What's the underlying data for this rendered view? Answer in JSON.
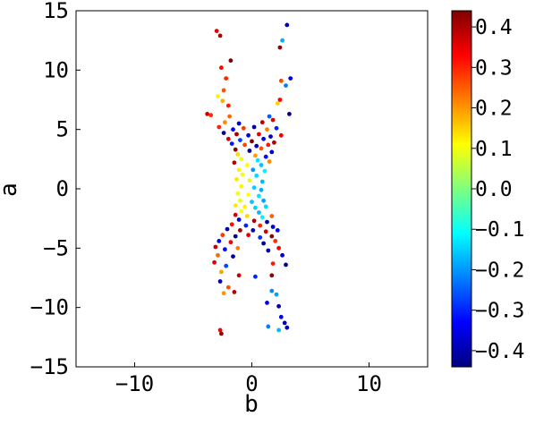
{
  "chart_data": {
    "type": "scatter",
    "title": "",
    "xlabel": "b",
    "ylabel": "a",
    "xlim": [
      -15,
      15
    ],
    "ylim": [
      -15,
      15
    ],
    "x_ticks": [
      {
        "value": -10,
        "label": "−10"
      },
      {
        "value": 0,
        "label": "0"
      },
      {
        "value": 10,
        "label": "10"
      }
    ],
    "y_ticks": [
      {
        "value": -15,
        "label": "−15"
      },
      {
        "value": -10,
        "label": "−10"
      },
      {
        "value": -5,
        "label": "−5"
      },
      {
        "value": 0,
        "label": "0"
      },
      {
        "value": 5,
        "label": "5"
      },
      {
        "value": 10,
        "label": "10"
      },
      {
        "value": 15,
        "label": "15"
      }
    ],
    "grid": false,
    "colorbar": {
      "colormap": "jet",
      "range": [
        -0.44,
        0.44
      ],
      "ticks": [
        {
          "value": 0.4,
          "label": "0.4"
        },
        {
          "value": 0.3,
          "label": "0.3"
        },
        {
          "value": 0.2,
          "label": "0.2"
        },
        {
          "value": 0.1,
          "label": "0.1"
        },
        {
          "value": 0.0,
          "label": "0.0"
        },
        {
          "value": -0.1,
          "label": "−0.1"
        },
        {
          "value": -0.2,
          "label": "−0.2"
        },
        {
          "value": -0.3,
          "label": "−0.3"
        },
        {
          "value": -0.4,
          "label": "−0.4"
        }
      ]
    },
    "points": [
      {
        "x": -3.0,
        "y": 13.3,
        "c": 0.35
      },
      {
        "x": -2.7,
        "y": 12.9,
        "c": 0.4
      },
      {
        "x": -1.8,
        "y": 10.8,
        "c": 0.44
      },
      {
        "x": -2.6,
        "y": 10.2,
        "c": 0.33
      },
      {
        "x": -2.2,
        "y": 9.3,
        "c": 0.3
      },
      {
        "x": -2.4,
        "y": 8.3,
        "c": 0.26
      },
      {
        "x": -2.5,
        "y": 7.4,
        "c": 0.18
      },
      {
        "x": -2.9,
        "y": 7.8,
        "c": 0.12
      },
      {
        "x": -2.0,
        "y": 7.0,
        "c": 0.31
      },
      {
        "x": -3.8,
        "y": 6.3,
        "c": 0.38
      },
      {
        "x": -3.5,
        "y": 6.2,
        "c": 0.29
      },
      {
        "x": -1.9,
        "y": 6.1,
        "c": 0.24
      },
      {
        "x": 3.0,
        "y": 13.8,
        "c": -0.4
      },
      {
        "x": 2.6,
        "y": 12.5,
        "c": -0.18
      },
      {
        "x": 2.4,
        "y": 11.9,
        "c": 0.42
      },
      {
        "x": 3.3,
        "y": 9.3,
        "c": -0.36
      },
      {
        "x": 2.5,
        "y": 9.1,
        "c": 0.27
      },
      {
        "x": 2.9,
        "y": 8.7,
        "c": -0.22
      },
      {
        "x": 2.4,
        "y": 7.5,
        "c": 0.33
      },
      {
        "x": 2.2,
        "y": 7.2,
        "c": 0.15
      },
      {
        "x": 3.2,
        "y": 6.3,
        "c": -0.42
      },
      {
        "x": 1.5,
        "y": 6.1,
        "c": -0.25
      },
      {
        "x": 1.8,
        "y": 5.8,
        "c": 0.36
      },
      {
        "x": -2.3,
        "y": 5.6,
        "c": 0.21
      },
      {
        "x": -1.1,
        "y": 5.5,
        "c": -0.38
      },
      {
        "x": 0.9,
        "y": 5.6,
        "c": 0.39
      },
      {
        "x": -2.8,
        "y": 5.2,
        "c": 0.3
      },
      {
        "x": -1.6,
        "y": 5.0,
        "c": -0.33
      },
      {
        "x": -0.7,
        "y": 5.1,
        "c": 0.28
      },
      {
        "x": 0.2,
        "y": 5.2,
        "c": -0.41
      },
      {
        "x": 1.3,
        "y": 5.0,
        "c": 0.22
      },
      {
        "x": 2.1,
        "y": 5.1,
        "c": -0.3
      },
      {
        "x": -2.4,
        "y": 4.7,
        "c": -0.43
      },
      {
        "x": -1.3,
        "y": 4.6,
        "c": 0.41
      },
      {
        "x": -0.3,
        "y": 4.5,
        "c": -0.36
      },
      {
        "x": 0.6,
        "y": 4.6,
        "c": 0.35
      },
      {
        "x": 1.6,
        "y": 4.4,
        "c": -0.4
      },
      {
        "x": 2.5,
        "y": 4.5,
        "c": 0.34
      },
      {
        "x": -2.0,
        "y": 4.2,
        "c": 0.37
      },
      {
        "x": -1.0,
        "y": 4.1,
        "c": -0.28
      },
      {
        "x": 0.0,
        "y": 4.0,
        "c": 0.44
      },
      {
        "x": 1.0,
        "y": 4.2,
        "c": -0.34
      },
      {
        "x": 1.9,
        "y": 3.9,
        "c": 0.4
      },
      {
        "x": -1.7,
        "y": 3.8,
        "c": -0.31
      },
      {
        "x": -0.6,
        "y": 3.7,
        "c": 0.27
      },
      {
        "x": 0.4,
        "y": 3.6,
        "c": -0.39
      },
      {
        "x": 1.4,
        "y": 3.7,
        "c": 0.31
      },
      {
        "x": -1.4,
        "y": 3.3,
        "c": 0.43
      },
      {
        "x": -0.2,
        "y": 3.2,
        "c": -0.43
      },
      {
        "x": 0.8,
        "y": 3.4,
        "c": 0.26
      },
      {
        "x": 1.7,
        "y": 3.1,
        "c": -0.37
      },
      {
        "x": -1.2,
        "y": 2.9,
        "c": 0.14
      },
      {
        "x": 0.3,
        "y": 2.8,
        "c": 0.19
      },
      {
        "x": 1.2,
        "y": 2.7,
        "c": -0.32
      },
      {
        "x": -0.9,
        "y": 2.5,
        "c": 0.09
      },
      {
        "x": 0.5,
        "y": 2.4,
        "c": -0.13
      },
      {
        "x": 1.5,
        "y": 2.3,
        "c": 0.21
      },
      {
        "x": -1.5,
        "y": 2.2,
        "c": 0.39
      },
      {
        "x": -0.4,
        "y": 2.0,
        "c": 0.11
      },
      {
        "x": 0.8,
        "y": 2.0,
        "c": -0.16
      },
      {
        "x": -1.1,
        "y": 1.6,
        "c": 0.12
      },
      {
        "x": 0.1,
        "y": 1.6,
        "c": -0.2
      },
      {
        "x": 1.1,
        "y": 1.5,
        "c": -0.12
      },
      {
        "x": -0.8,
        "y": 1.2,
        "c": 0.1
      },
      {
        "x": 0.4,
        "y": 1.1,
        "c": -0.14
      },
      {
        "x": -1.3,
        "y": 0.8,
        "c": 0.13
      },
      {
        "x": -0.2,
        "y": 0.7,
        "c": 0.08
      },
      {
        "x": 0.9,
        "y": 0.6,
        "c": -0.17
      },
      {
        "x": -0.9,
        "y": 0.2,
        "c": 0.12
      },
      {
        "x": 0.2,
        "y": 0.1,
        "c": -0.15
      },
      {
        "x": 0.8,
        "y": -0.1,
        "c": -0.18
      },
      {
        "x": -1.2,
        "y": -0.4,
        "c": 0.1
      },
      {
        "x": -0.3,
        "y": -0.5,
        "c": 0.11
      },
      {
        "x": 0.6,
        "y": -0.6,
        "c": -0.13
      },
      {
        "x": -1.0,
        "y": -1.0,
        "c": 0.09
      },
      {
        "x": 0.0,
        "y": -1.1,
        "c": -0.16
      },
      {
        "x": 1.0,
        "y": -1.0,
        "c": -0.19
      },
      {
        "x": -1.4,
        "y": -1.4,
        "c": 0.13
      },
      {
        "x": -0.6,
        "y": -1.5,
        "c": 0.12
      },
      {
        "x": 0.3,
        "y": -1.6,
        "c": -0.15
      },
      {
        "x": 1.2,
        "y": -1.5,
        "c": -0.14
      },
      {
        "x": -0.9,
        "y": -1.9,
        "c": 0.1
      },
      {
        "x": 0.6,
        "y": -2.0,
        "c": -0.17
      },
      {
        "x": -1.4,
        "y": -2.2,
        "c": 0.36
      },
      {
        "x": -0.4,
        "y": -2.3,
        "c": 0.14
      },
      {
        "x": 0.9,
        "y": -2.4,
        "c": -0.12
      },
      {
        "x": 1.7,
        "y": -2.3,
        "c": 0.25
      },
      {
        "x": -1.1,
        "y": -2.6,
        "c": -0.35
      },
      {
        "x": 0.2,
        "y": -2.7,
        "c": 0.4
      },
      {
        "x": 1.3,
        "y": -2.8,
        "c": -0.41
      },
      {
        "x": -1.7,
        "y": -3.0,
        "c": 0.32
      },
      {
        "x": -0.5,
        "y": -3.1,
        "c": -0.3
      },
      {
        "x": 0.7,
        "y": -3.1,
        "c": 0.3
      },
      {
        "x": 1.8,
        "y": -3.2,
        "c": -0.36
      },
      {
        "x": -2.1,
        "y": -3.4,
        "c": -0.4
      },
      {
        "x": -1.0,
        "y": -3.5,
        "c": 0.41
      },
      {
        "x": 0.1,
        "y": -3.5,
        "c": -0.38
      },
      {
        "x": 1.2,
        "y": -3.6,
        "c": 0.37
      },
      {
        "x": 2.2,
        "y": -3.5,
        "c": -0.33
      },
      {
        "x": -2.5,
        "y": -3.9,
        "c": 0.28
      },
      {
        "x": -1.4,
        "y": -4.0,
        "c": -0.44
      },
      {
        "x": -0.3,
        "y": -3.9,
        "c": 0.35
      },
      {
        "x": 0.7,
        "y": -4.1,
        "c": -0.29
      },
      {
        "x": 1.7,
        "y": -4.0,
        "c": 0.43
      },
      {
        "x": -2.8,
        "y": -4.4,
        "c": -0.35
      },
      {
        "x": -1.8,
        "y": -4.5,
        "c": 0.33
      },
      {
        "x": 1.0,
        "y": -4.6,
        "c": -0.42
      },
      {
        "x": 2.0,
        "y": -4.4,
        "c": 0.29
      },
      {
        "x": -3.1,
        "y": -4.9,
        "c": 0.38
      },
      {
        "x": -2.3,
        "y": -5.1,
        "c": -0.32
      },
      {
        "x": -1.2,
        "y": -5.0,
        "c": 0.22
      },
      {
        "x": 1.4,
        "y": -5.2,
        "c": -0.39
      },
      {
        "x": 2.3,
        "y": -5.0,
        "c": 0.34
      },
      {
        "x": -2.9,
        "y": -5.6,
        "c": 0.24
      },
      {
        "x": -1.6,
        "y": -5.7,
        "c": -0.41
      },
      {
        "x": 2.6,
        "y": -5.6,
        "c": -0.37
      },
      {
        "x": -3.2,
        "y": -6.2,
        "c": 0.36
      },
      {
        "x": -2.2,
        "y": -6.5,
        "c": -0.27
      },
      {
        "x": 1.8,
        "y": -6.3,
        "c": 0.31
      },
      {
        "x": 2.9,
        "y": -6.4,
        "c": -0.43
      },
      {
        "x": -2.6,
        "y": -7.0,
        "c": 0.19
      },
      {
        "x": -1.1,
        "y": -7.3,
        "c": 0.37
      },
      {
        "x": 0.3,
        "y": -7.4,
        "c": -0.3
      },
      {
        "x": 1.7,
        "y": -7.3,
        "c": 0.42
      },
      {
        "x": -2.7,
        "y": -7.8,
        "c": -0.38
      },
      {
        "x": -2.0,
        "y": -8.3,
        "c": 0.26
      },
      {
        "x": -2.4,
        "y": -8.8,
        "c": 0.2
      },
      {
        "x": -1.5,
        "y": -8.7,
        "c": 0.39
      },
      {
        "x": 1.7,
        "y": -8.6,
        "c": -0.21
      },
      {
        "x": 2.1,
        "y": -8.9,
        "c": -0.19
      },
      {
        "x": 1.3,
        "y": -9.6,
        "c": -0.36
      },
      {
        "x": 2.3,
        "y": -9.9,
        "c": -0.41
      },
      {
        "x": 2.5,
        "y": -10.8,
        "c": -0.34
      },
      {
        "x": 2.8,
        "y": -11.3,
        "c": -0.39
      },
      {
        "x": 1.4,
        "y": -11.6,
        "c": -0.22
      },
      {
        "x": 2.3,
        "y": -11.9,
        "c": -0.17
      },
      {
        "x": 3.0,
        "y": -11.7,
        "c": -0.37
      },
      {
        "x": -2.7,
        "y": -11.9,
        "c": 0.33
      },
      {
        "x": -2.6,
        "y": -12.2,
        "c": 0.42
      }
    ]
  }
}
